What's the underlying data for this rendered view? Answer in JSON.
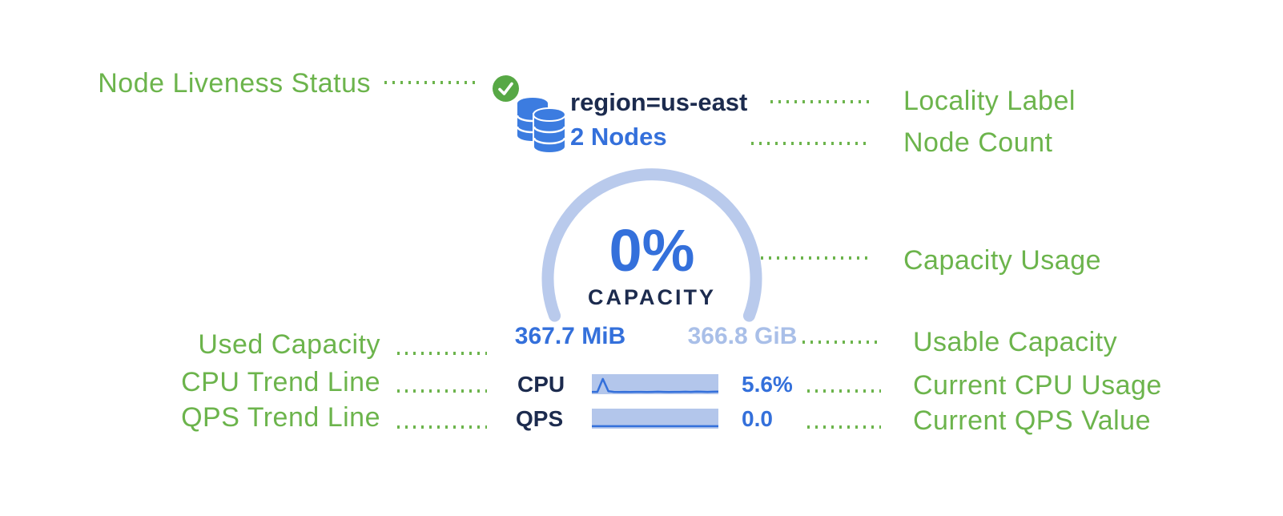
{
  "colors": {
    "label_green": "#6CB44C",
    "badge_green": "#57A845",
    "navy": "#1C2B4E",
    "blue": "#3470DB",
    "arc_blue": "#B9CAEC",
    "pale_blue": "#A9BFE8",
    "spark_bg": "#B3C6EB",
    "db_blue": "#3C7CE0"
  },
  "widget": {
    "liveness_icon": "check-circle-icon",
    "node_icon": "database-stack-icon",
    "locality": "region=us-east",
    "node_count": "2 Nodes",
    "capacity_pct": "0%",
    "capacity_label": "CAPACITY",
    "used_capacity": "367.7 MiB",
    "usable_capacity": "366.8 GiB",
    "cpu_label": "CPU",
    "cpu_value": "5.6%",
    "qps_label": "QPS",
    "qps_value": "0.0"
  },
  "annotations": {
    "left": [
      {
        "label": "Node Liveness Status"
      },
      {
        "label": "Used Capacity"
      },
      {
        "label": "CPU Trend Line"
      },
      {
        "label": "QPS Trend Line"
      }
    ],
    "right": [
      {
        "label": "Locality Label"
      },
      {
        "label": "Node Count"
      },
      {
        "label": "Capacity Usage"
      },
      {
        "label": "Usable Capacity"
      },
      {
        "label": "Current CPU Usage"
      },
      {
        "label": "Current QPS Value"
      }
    ]
  },
  "chart_data": [
    {
      "type": "line",
      "name": "cpu-sparkline",
      "title": "CPU trend",
      "current_label": "5.6%",
      "ylim": [
        0,
        1
      ],
      "values": [
        0.05,
        0.05,
        0.95,
        0.1,
        0.05,
        0.04,
        0.05,
        0.04,
        0.05,
        0.05,
        0.04,
        0.05,
        0.06,
        0.05,
        0.04,
        0.05,
        0.05,
        0.06,
        0.05,
        0.07,
        0.06,
        0.05,
        0.06,
        0.07
      ]
    },
    {
      "type": "line",
      "name": "qps-sparkline",
      "title": "QPS trend",
      "current_label": "0.0",
      "ylim": [
        0,
        1
      ],
      "values": [
        0.06,
        0.06,
        0.06,
        0.06,
        0.06,
        0.06,
        0.06,
        0.06,
        0.06,
        0.06,
        0.06,
        0.06,
        0.06,
        0.06,
        0.06,
        0.06,
        0.06,
        0.06,
        0.06,
        0.06,
        0.06,
        0.06,
        0.06,
        0.06
      ]
    }
  ],
  "gauge": {
    "type": "arc-gauge",
    "value_pct": 0,
    "label": "CAPACITY"
  }
}
